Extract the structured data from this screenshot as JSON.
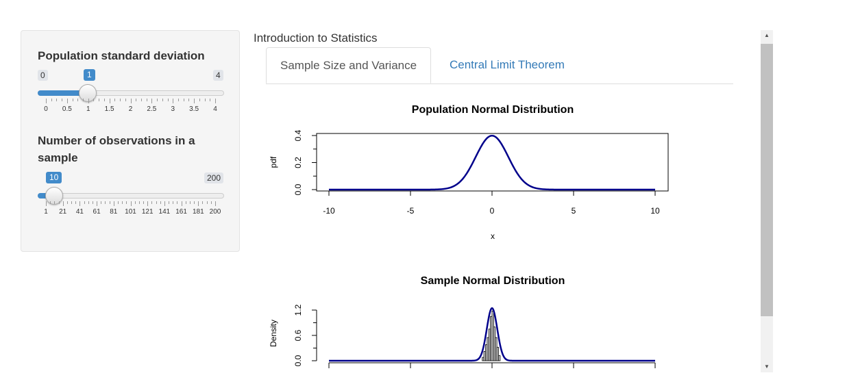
{
  "sidebar": {
    "sd_slider": {
      "label": "Population standard deviation",
      "min_label": "0",
      "max_label": "4",
      "value_label": "1",
      "value": 1,
      "min": 0,
      "max": 4,
      "tick_labels": [
        "0",
        "0.5",
        "1",
        "1.5",
        "2",
        "2.5",
        "3",
        "3.5",
        "4"
      ]
    },
    "n_slider": {
      "label": "Number of observations in a sample",
      "min_label": "1",
      "max_label": "200",
      "value_label": "10",
      "value": 10,
      "min": 1,
      "max": 200,
      "tick_labels": [
        "1",
        "21",
        "41",
        "61",
        "81",
        "101",
        "121",
        "141",
        "161",
        "181",
        "200"
      ]
    }
  },
  "main": {
    "app_title": "Introduction to Statistics",
    "tabs": [
      {
        "label": "Sample Size and Variance",
        "active": true
      },
      {
        "label": "Central Limit Theorem",
        "active": false
      }
    ]
  },
  "colors": {
    "accent": "#428bca",
    "link": "#337ab7",
    "curve": "#00008b",
    "hist_fill": "#d3d3d3"
  },
  "chart_data": [
    {
      "type": "line",
      "title": "Population Normal Distribution",
      "xlabel": "x",
      "ylabel": "pdf",
      "xlim": [
        -10,
        10
      ],
      "ylim": [
        0,
        0.4
      ],
      "xticks": [
        "-10",
        "-5",
        "0",
        "5",
        "10"
      ],
      "yticks": [
        "0.0",
        "0.2",
        "0.4"
      ],
      "series": [
        {
          "distribution": "normal",
          "mean": 0,
          "sd": 1
        }
      ]
    },
    {
      "type": "bar",
      "title": "Sample Normal Distribution",
      "ylabel": "Density",
      "xlim": [
        -10,
        10
      ],
      "ylim": [
        0,
        1.2
      ],
      "yticks": [
        "0.0",
        "0.6",
        "1.2"
      ],
      "histogram": {
        "bin_edges": [
          -0.6,
          -0.5,
          -0.4,
          -0.3,
          -0.2,
          -0.1,
          0.0,
          0.1,
          0.2,
          0.3,
          0.4,
          0.5
        ],
        "densities": [
          0.08,
          0.22,
          0.38,
          0.55,
          0.75,
          1.05,
          1.18,
          0.8,
          0.55,
          0.32,
          0.12
        ]
      },
      "series": [
        {
          "distribution": "normal",
          "mean": 0,
          "sd": 0.32
        }
      ]
    }
  ]
}
